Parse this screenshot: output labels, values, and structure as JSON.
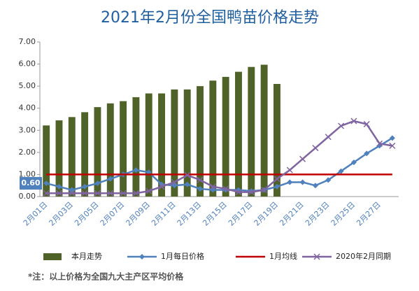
{
  "chart_data": {
    "type": "bar",
    "title": "2021年2月份全国鸭苗价格走势",
    "footnote": "*注：以上价格为全国九大主产区平均价格",
    "categories": [
      "2月01日",
      null,
      "2月03日",
      null,
      "2月05日",
      null,
      "2月07日",
      null,
      "2月09日",
      null,
      "2月11日",
      null,
      "2月13日",
      null,
      "2月15日",
      null,
      "2月17日",
      null,
      "2月19日",
      null,
      "2月21日",
      null,
      "2月23日",
      null,
      "2月25日",
      null,
      "2月27日",
      null
    ],
    "ylim": [
      0,
      7
    ],
    "yticks": [
      {
        "value": 0,
        "label": "0.00"
      },
      {
        "value": 1,
        "label": "1.00"
      },
      {
        "value": 2,
        "label": "2.00"
      },
      {
        "value": 3,
        "label": "3.00"
      },
      {
        "value": 4,
        "label": "4.00"
      },
      {
        "value": 5,
        "label": "5.00"
      },
      {
        "value": 6,
        "label": "6.00"
      },
      {
        "value": 7,
        "label": "7.00"
      }
    ],
    "grid": false,
    "legend": "bottom",
    "series": [
      {
        "name": "本月走势",
        "type": "bar",
        "color": "#4f6228",
        "values": [
          3.22,
          3.45,
          3.6,
          3.82,
          4.05,
          4.22,
          4.32,
          4.5,
          4.67,
          4.67,
          4.85,
          4.85,
          5.0,
          5.25,
          5.42,
          5.65,
          5.87,
          5.97,
          5.1,
          null,
          null,
          null,
          null,
          null,
          null,
          null,
          null,
          null
        ]
      },
      {
        "name": "1月每日价格",
        "type": "line",
        "marker": "diamond",
        "color": "#4f81bd",
        "values": [
          0.6,
          0.45,
          0.3,
          0.45,
          0.6,
          0.8,
          1.0,
          1.2,
          1.1,
          0.55,
          0.5,
          0.55,
          0.35,
          0.3,
          0.3,
          0.3,
          0.25,
          0.3,
          0.45,
          0.65,
          0.65,
          0.5,
          0.75,
          1.15,
          1.55,
          1.95,
          2.3,
          2.65
        ],
        "value_labels": [
          "0.60",
          null,
          null,
          null,
          null,
          null,
          null,
          null,
          null,
          null,
          null,
          null,
          null,
          null,
          null,
          null,
          null,
          null,
          null,
          null,
          null,
          null,
          null,
          null,
          null,
          null,
          null,
          null
        ]
      },
      {
        "name": "1月均线",
        "type": "line",
        "marker": "none",
        "color": "#c00000",
        "values": [
          1,
          1,
          1,
          1,
          1,
          1,
          1,
          1,
          1,
          1,
          1,
          1,
          1,
          1,
          1,
          1,
          1,
          1,
          1,
          1,
          1,
          1,
          1,
          1,
          1,
          1,
          1,
          1
        ]
      },
      {
        "name": "2020年2月同期",
        "type": "line",
        "marker": "x",
        "color": "#8064a2",
        "values": [
          0.15,
          0.15,
          0.15,
          0.15,
          0.15,
          0.15,
          0.15,
          0.15,
          0.25,
          0.45,
          0.65,
          0.97,
          0.75,
          0.45,
          0.35,
          0.2,
          0.2,
          0.3,
          0.8,
          1.2,
          1.7,
          2.2,
          2.7,
          3.2,
          3.42,
          3.28,
          2.4,
          2.3
        ]
      }
    ]
  }
}
